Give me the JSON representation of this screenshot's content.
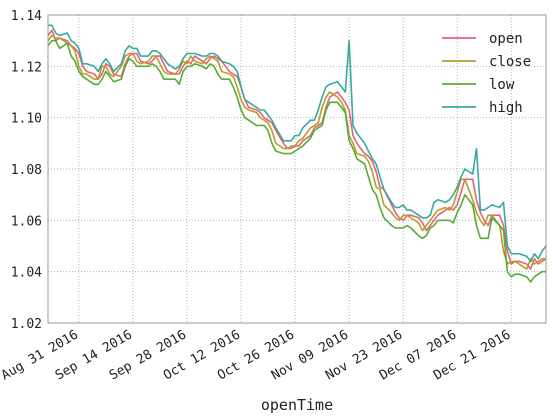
{
  "chart_data": {
    "type": "line",
    "xlabel": "openTime",
    "ylabel": "",
    "title": "",
    "ylim": [
      1.02,
      1.14
    ],
    "yticks": [
      "1.02",
      "1.04",
      "1.06",
      "1.08",
      "1.10",
      "1.12",
      "1.14"
    ],
    "xlim": [
      "2016-08-23",
      "2016-12-30"
    ],
    "xticks": [
      "Aug 31 2016",
      "Sep 14 2016",
      "Sep 28 2016",
      "Oct 12 2016",
      "Oct 26 2016",
      "Nov 09 2016",
      "Nov 23 2016",
      "Dec 07 2016",
      "Dec 21 2016"
    ],
    "xtick_dates": [
      "2016-08-31",
      "2016-09-14",
      "2016-09-28",
      "2016-10-12",
      "2016-10-26",
      "2016-11-09",
      "2016-11-23",
      "2016-12-07",
      "2016-12-21"
    ],
    "grid": true,
    "legend_position": "top-right",
    "x": [
      "2016-08-23",
      "2016-08-24",
      "2016-08-25",
      "2016-08-26",
      "2016-08-28",
      "2016-08-29",
      "2016-08-30",
      "2016-08-31",
      "2016-09-01",
      "2016-09-02",
      "2016-09-04",
      "2016-09-05",
      "2016-09-06",
      "2016-09-07",
      "2016-09-08",
      "2016-09-09",
      "2016-09-11",
      "2016-09-12",
      "2016-09-13",
      "2016-09-14",
      "2016-09-15",
      "2016-09-16",
      "2016-09-18",
      "2016-09-19",
      "2016-09-20",
      "2016-09-21",
      "2016-09-22",
      "2016-09-23",
      "2016-09-25",
      "2016-09-26",
      "2016-09-27",
      "2016-09-28",
      "2016-09-29",
      "2016-09-30",
      "2016-10-02",
      "2016-10-03",
      "2016-10-04",
      "2016-10-05",
      "2016-10-06",
      "2016-10-07",
      "2016-10-09",
      "2016-10-10",
      "2016-10-11",
      "2016-10-12",
      "2016-10-13",
      "2016-10-14",
      "2016-10-16",
      "2016-10-17",
      "2016-10-18",
      "2016-10-19",
      "2016-10-20",
      "2016-10-21",
      "2016-10-23",
      "2016-10-24",
      "2016-10-25",
      "2016-10-26",
      "2016-10-27",
      "2016-10-28",
      "2016-10-30",
      "2016-10-31",
      "2016-11-01",
      "2016-11-02",
      "2016-11-03",
      "2016-11-04",
      "2016-11-06",
      "2016-11-07",
      "2016-11-08",
      "2016-11-09",
      "2016-11-10",
      "2016-11-11",
      "2016-11-13",
      "2016-11-14",
      "2016-11-15",
      "2016-11-16",
      "2016-11-17",
      "2016-11-18",
      "2016-11-20",
      "2016-11-21",
      "2016-11-22",
      "2016-11-23",
      "2016-11-24",
      "2016-11-25",
      "2016-11-27",
      "2016-11-28",
      "2016-11-29",
      "2016-11-30",
      "2016-12-01",
      "2016-12-02",
      "2016-12-04",
      "2016-12-05",
      "2016-12-06",
      "2016-12-07",
      "2016-12-08",
      "2016-12-09",
      "2016-12-11",
      "2016-12-12",
      "2016-12-13",
      "2016-12-14",
      "2016-12-15",
      "2016-12-16",
      "2016-12-18",
      "2016-12-19",
      "2016-12-20",
      "2016-12-21",
      "2016-12-22",
      "2016-12-23",
      "2016-12-25",
      "2016-12-26",
      "2016-12-27",
      "2016-12-28",
      "2016-12-29",
      "2016-12-30"
    ],
    "series": [
      {
        "name": "open",
        "color": "#e8607a",
        "values": [
          1.132,
          1.134,
          1.13,
          1.131,
          1.13,
          1.128,
          1.127,
          1.125,
          1.12,
          1.118,
          1.117,
          1.115,
          1.117,
          1.121,
          1.12,
          1.117,
          1.116,
          1.121,
          1.124,
          1.125,
          1.125,
          1.122,
          1.121,
          1.122,
          1.124,
          1.124,
          1.121,
          1.118,
          1.117,
          1.117,
          1.12,
          1.122,
          1.121,
          1.124,
          1.122,
          1.121,
          1.123,
          1.124,
          1.123,
          1.122,
          1.118,
          1.117,
          1.116,
          1.112,
          1.107,
          1.104,
          1.103,
          1.102,
          1.1,
          1.099,
          1.098,
          1.095,
          1.09,
          1.088,
          1.088,
          1.089,
          1.089,
          1.091,
          1.093,
          1.096,
          1.097,
          1.098,
          1.104,
          1.108,
          1.11,
          1.108,
          1.106,
          1.103,
          1.093,
          1.09,
          1.086,
          1.085,
          1.083,
          1.079,
          1.073,
          1.072,
          1.066,
          1.063,
          1.061,
          1.06,
          1.062,
          1.062,
          1.061,
          1.059,
          1.056,
          1.058,
          1.06,
          1.062,
          1.064,
          1.065,
          1.064,
          1.066,
          1.071,
          1.076,
          1.076,
          1.068,
          1.063,
          1.06,
          1.058,
          1.062,
          1.062,
          1.058,
          1.048,
          1.043,
          1.044,
          1.044,
          1.043,
          1.041,
          1.045,
          1.043,
          1.044,
          1.045
        ]
      },
      {
        "name": "close",
        "color": "#b89c2c",
        "values": [
          1.13,
          1.132,
          1.131,
          1.131,
          1.129,
          1.128,
          1.126,
          1.12,
          1.117,
          1.117,
          1.115,
          1.115,
          1.12,
          1.12,
          1.117,
          1.116,
          1.12,
          1.124,
          1.125,
          1.125,
          1.122,
          1.121,
          1.122,
          1.124,
          1.124,
          1.121,
          1.118,
          1.117,
          1.117,
          1.119,
          1.122,
          1.121,
          1.124,
          1.122,
          1.121,
          1.123,
          1.124,
          1.123,
          1.122,
          1.118,
          1.117,
          1.116,
          1.112,
          1.107,
          1.104,
          1.103,
          1.102,
          1.1,
          1.099,
          1.098,
          1.095,
          1.09,
          1.088,
          1.088,
          1.089,
          1.089,
          1.091,
          1.092,
          1.096,
          1.097,
          1.098,
          1.104,
          1.108,
          1.11,
          1.108,
          1.106,
          1.103,
          1.093,
          1.09,
          1.086,
          1.085,
          1.083,
          1.079,
          1.073,
          1.072,
          1.066,
          1.063,
          1.061,
          1.06,
          1.062,
          1.062,
          1.061,
          1.059,
          1.056,
          1.058,
          1.06,
          1.062,
          1.064,
          1.065,
          1.064,
          1.066,
          1.071,
          1.076,
          1.076,
          1.068,
          1.063,
          1.06,
          1.058,
          1.062,
          1.062,
          1.058,
          1.048,
          1.043,
          1.044,
          1.044,
          1.043,
          1.041,
          1.045,
          1.043,
          1.044,
          1.045,
          1.045
        ]
      },
      {
        "name": "low",
        "color": "#58ab33",
        "values": [
          1.128,
          1.13,
          1.13,
          1.127,
          1.129,
          1.124,
          1.122,
          1.118,
          1.116,
          1.115,
          1.113,
          1.113,
          1.115,
          1.118,
          1.116,
          1.114,
          1.115,
          1.12,
          1.123,
          1.122,
          1.12,
          1.12,
          1.12,
          1.121,
          1.12,
          1.118,
          1.115,
          1.115,
          1.115,
          1.113,
          1.118,
          1.12,
          1.12,
          1.121,
          1.12,
          1.119,
          1.121,
          1.12,
          1.117,
          1.115,
          1.115,
          1.112,
          1.108,
          1.103,
          1.1,
          1.099,
          1.097,
          1.097,
          1.097,
          1.095,
          1.09,
          1.087,
          1.086,
          1.086,
          1.086,
          1.087,
          1.088,
          1.089,
          1.092,
          1.095,
          1.096,
          1.097,
          1.103,
          1.106,
          1.106,
          1.104,
          1.102,
          1.091,
          1.088,
          1.084,
          1.082,
          1.077,
          1.072,
          1.07,
          1.065,
          1.061,
          1.058,
          1.057,
          1.057,
          1.057,
          1.058,
          1.057,
          1.054,
          1.053,
          1.054,
          1.057,
          1.058,
          1.06,
          1.06,
          1.06,
          1.059,
          1.063,
          1.066,
          1.07,
          1.066,
          1.058,
          1.053,
          1.053,
          1.053,
          1.061,
          1.058,
          1.056,
          1.04,
          1.038,
          1.039,
          1.039,
          1.038,
          1.036,
          1.038,
          1.039,
          1.04,
          1.04
        ]
      },
      {
        "name": "high",
        "color": "#3aa8a2",
        "values": [
          1.136,
          1.136,
          1.133,
          1.132,
          1.133,
          1.13,
          1.129,
          1.127,
          1.121,
          1.121,
          1.12,
          1.118,
          1.121,
          1.123,
          1.121,
          1.118,
          1.121,
          1.126,
          1.128,
          1.127,
          1.127,
          1.124,
          1.124,
          1.126,
          1.126,
          1.125,
          1.123,
          1.121,
          1.119,
          1.12,
          1.123,
          1.125,
          1.125,
          1.125,
          1.124,
          1.124,
          1.125,
          1.125,
          1.124,
          1.122,
          1.121,
          1.12,
          1.118,
          1.112,
          1.107,
          1.106,
          1.104,
          1.103,
          1.103,
          1.101,
          1.099,
          1.096,
          1.091,
          1.091,
          1.091,
          1.093,
          1.093,
          1.096,
          1.099,
          1.099,
          1.103,
          1.108,
          1.112,
          1.113,
          1.114,
          1.112,
          1.11,
          1.13,
          1.097,
          1.094,
          1.09,
          1.087,
          1.084,
          1.082,
          1.077,
          1.072,
          1.067,
          1.065,
          1.065,
          1.066,
          1.064,
          1.064,
          1.062,
          1.061,
          1.061,
          1.062,
          1.067,
          1.068,
          1.067,
          1.068,
          1.07,
          1.073,
          1.077,
          1.08,
          1.078,
          1.088,
          1.064,
          1.064,
          1.065,
          1.066,
          1.065,
          1.067,
          1.05,
          1.047,
          1.047,
          1.047,
          1.046,
          1.044,
          1.047,
          1.045,
          1.048,
          1.05
        ]
      }
    ]
  }
}
